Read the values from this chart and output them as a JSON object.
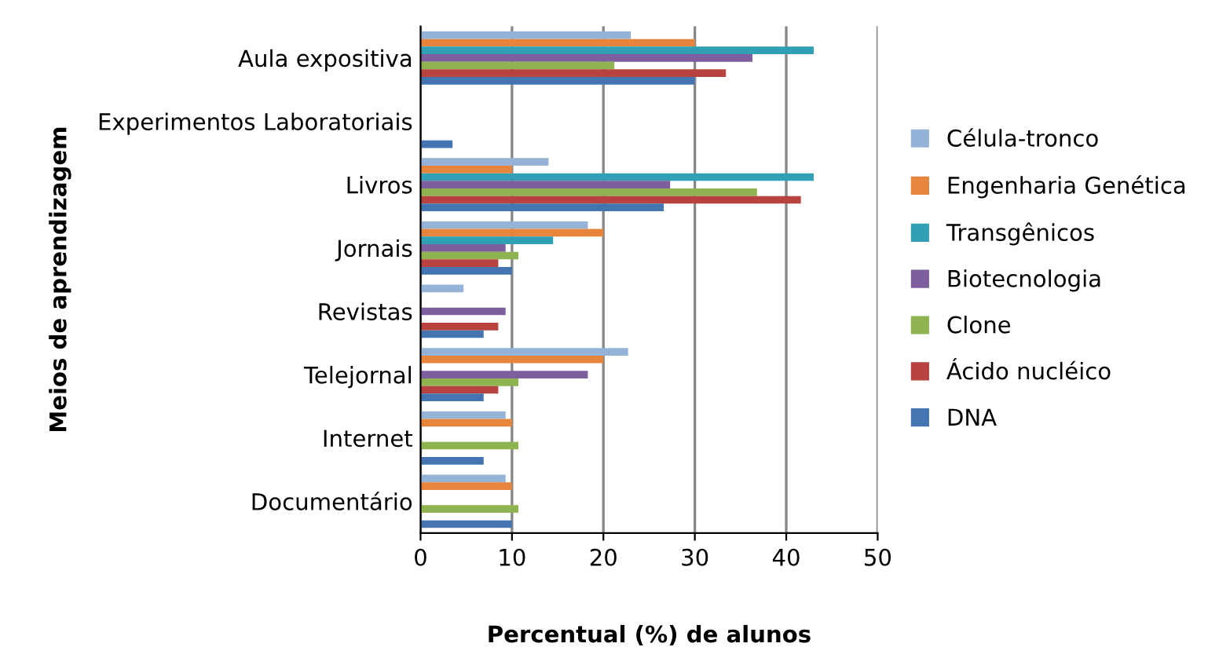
{
  "chart_data": {
    "type": "bar",
    "orientation": "horizontal",
    "xlabel": "Percentual (%) de alunos",
    "ylabel": "Meios de aprendizagem",
    "categories": [
      "Aula expositiva",
      "Experimentos Laboratoriais",
      "Livros",
      "Jornais",
      "Revistas",
      "Telejornal",
      "Internet",
      "Documentário"
    ],
    "series": [
      {
        "name": "Célula-tronco",
        "color": "#95b3d7",
        "values": [
          23,
          0,
          14,
          18.3,
          4.7,
          22.7,
          9.3,
          9.3
        ]
      },
      {
        "name": "Engenharia Genética",
        "color": "#e8853d",
        "values": [
          30,
          0,
          10,
          20,
          0,
          20,
          10,
          10
        ]
      },
      {
        "name": "Transgênicos",
        "color": "#31a0b4",
        "values": [
          43,
          0,
          43,
          14.5,
          0,
          0,
          0,
          0
        ]
      },
      {
        "name": "Biotecnologia",
        "color": "#7d5f9f",
        "values": [
          36.3,
          0,
          27.3,
          9.3,
          9.3,
          18.3,
          0,
          0
        ]
      },
      {
        "name": "Clone",
        "color": "#8fb350",
        "values": [
          21.2,
          0,
          36.8,
          10.7,
          0,
          10.7,
          10.7,
          10.7
        ]
      },
      {
        "name": "Ácido nucléico",
        "color": "#b8423f",
        "values": [
          33.4,
          0,
          41.6,
          8.5,
          8.5,
          8.5,
          0,
          0
        ]
      },
      {
        "name": "DNA",
        "color": "#4575b0",
        "values": [
          30,
          3.5,
          26.6,
          10,
          6.9,
          6.9,
          6.9,
          10
        ]
      }
    ],
    "xlim": [
      0,
      50
    ],
    "xticks": [
      0,
      10,
      20,
      30,
      40,
      50
    ],
    "grid": "x",
    "legend": "right"
  }
}
